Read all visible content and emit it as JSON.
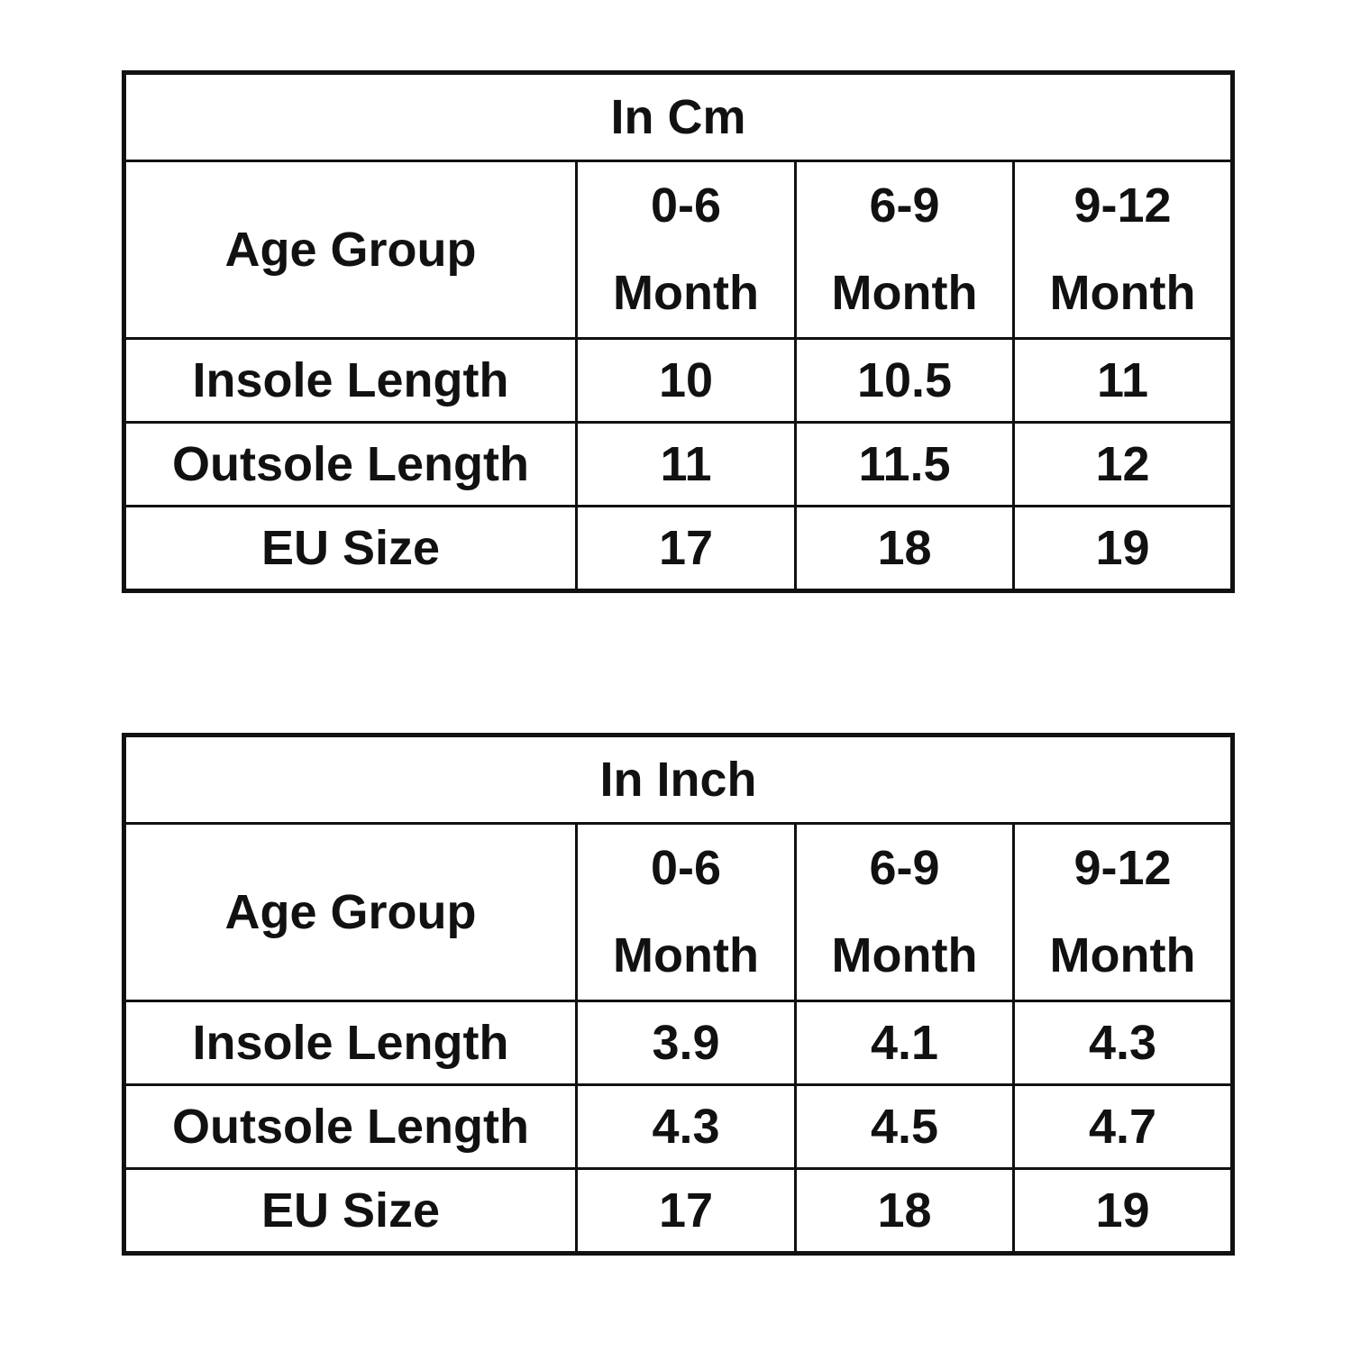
{
  "tables": [
    {
      "title": "In Cm",
      "header": [
        "Age Group",
        "0-6 Month",
        "6-9 Month",
        "9-12 Month"
      ],
      "rows": [
        [
          "Insole Length",
          10,
          10.5,
          11
        ],
        [
          "Outsole Length",
          11,
          11.5,
          12
        ],
        [
          "EU Size",
          17,
          18,
          19
        ]
      ]
    },
    {
      "title": "In Inch",
      "header": [
        "Age Group",
        "0-6 Month",
        "6-9 Month",
        "9-12 Month"
      ],
      "rows": [
        [
          "Insole Length",
          3.9,
          4.1,
          4.3
        ],
        [
          "Outsole Length",
          4.3,
          4.5,
          4.7
        ],
        [
          "EU Size",
          17,
          18,
          19
        ]
      ]
    }
  ]
}
